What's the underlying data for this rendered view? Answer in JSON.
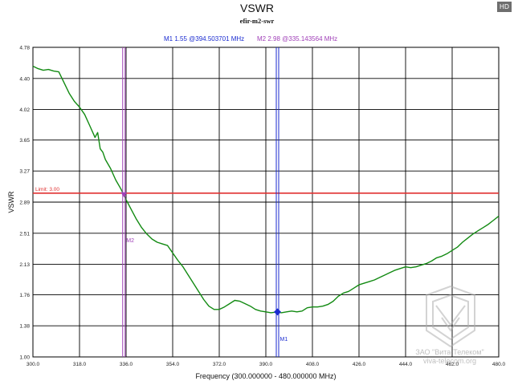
{
  "hd_badge": "HD",
  "chart_data": {
    "type": "line",
    "title": "VSWR",
    "subtitle": "efir-m2-swr",
    "xlabel": "Frequency (300.000000 - 480.000000 MHz)",
    "ylabel": "VSWR",
    "xlim": [
      300,
      480
    ],
    "ylim": [
      1.0,
      4.78
    ],
    "xticks": [
      300,
      318,
      336,
      354,
      372,
      390,
      408,
      426,
      444,
      462,
      480
    ],
    "xtick_labels": [
      "300.0",
      "318.0",
      "336.0",
      "354.0",
      "372.0",
      "390.0",
      "408.0",
      "426.0",
      "444.0",
      "462.0",
      "480.0"
    ],
    "yticks": [
      1.0,
      1.38,
      1.76,
      2.13,
      2.51,
      2.89,
      3.27,
      3.65,
      4.02,
      4.4,
      4.78
    ],
    "ytick_labels": [
      "1.00",
      "1.38",
      "1.76",
      "2.13",
      "2.51",
      "2.89",
      "3.27",
      "3.65",
      "4.02",
      "4.40",
      "4.78"
    ],
    "grid": true,
    "limit": {
      "value": 3.0,
      "label": "Limit: 3.00",
      "color": "#e03030"
    },
    "markers": [
      {
        "name": "M1",
        "x": 394.503701,
        "y": 1.55,
        "color": "#1a2bd0",
        "header": "M1  1.55 @394.503701 MHz"
      },
      {
        "name": "M2",
        "x": 335.143564,
        "y": 2.98,
        "color": "#a040b8",
        "header": "M2  2.98 @335.143564 MHz"
      }
    ],
    "series": [
      {
        "name": "VSWR",
        "color": "#128a12",
        "x": [
          300,
          302,
          304,
          306,
          308,
          310,
          312,
          314,
          316,
          318,
          320,
          322,
          324,
          325,
          326,
          327,
          328,
          330,
          332,
          334,
          335.14,
          336,
          338,
          340,
          342,
          344,
          346,
          348,
          350,
          352,
          354,
          356,
          358,
          360,
          362,
          364,
          366,
          368,
          370,
          372,
          374,
          376,
          378,
          380,
          382,
          384,
          386,
          388,
          390,
          392,
          394.5,
          396,
          398,
          400,
          402,
          404,
          406,
          408,
          410,
          412,
          414,
          416,
          418,
          420,
          422,
          424,
          426,
          428,
          430,
          432,
          434,
          436,
          438,
          440,
          442,
          444,
          446,
          448,
          450,
          452,
          454,
          456,
          458,
          460,
          462,
          464,
          466,
          468,
          470,
          472,
          474,
          476,
          478,
          480
        ],
        "values": [
          4.55,
          4.52,
          4.5,
          4.51,
          4.49,
          4.48,
          4.35,
          4.22,
          4.12,
          4.05,
          3.96,
          3.82,
          3.68,
          3.74,
          3.54,
          3.5,
          3.41,
          3.3,
          3.16,
          3.05,
          2.98,
          2.92,
          2.8,
          2.68,
          2.58,
          2.5,
          2.44,
          2.4,
          2.38,
          2.36,
          2.27,
          2.18,
          2.1,
          2.0,
          1.9,
          1.8,
          1.7,
          1.62,
          1.58,
          1.58,
          1.61,
          1.65,
          1.69,
          1.68,
          1.65,
          1.62,
          1.58,
          1.56,
          1.55,
          1.54,
          1.55,
          1.54,
          1.55,
          1.56,
          1.55,
          1.56,
          1.6,
          1.61,
          1.61,
          1.62,
          1.64,
          1.68,
          1.74,
          1.78,
          1.8,
          1.84,
          1.88,
          1.9,
          1.92,
          1.94,
          1.97,
          2.0,
          2.03,
          2.06,
          2.08,
          2.1,
          2.09,
          2.1,
          2.12,
          2.14,
          2.17,
          2.21,
          2.23,
          2.26,
          2.3,
          2.34,
          2.4,
          2.45,
          2.5,
          2.54,
          2.58,
          2.62,
          2.67,
          2.72
        ]
      }
    ]
  },
  "watermark": {
    "line1": "ЗАО \"Вита-Телеком\"",
    "line2": "viva-telecom.org"
  }
}
